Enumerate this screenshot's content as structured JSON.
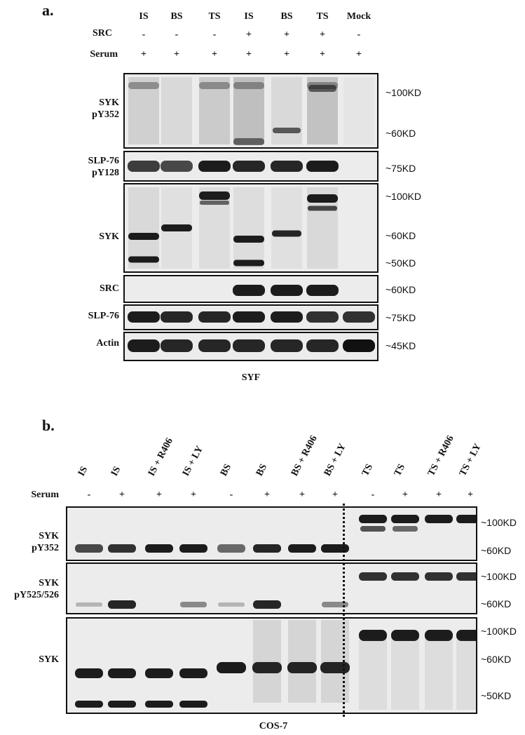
{
  "panel_a": {
    "label": "a.",
    "lanes": [
      "IS",
      "BS",
      "TS",
      "IS",
      "BS",
      "TS",
      "Mock"
    ],
    "row_src_label": "SRC",
    "src_signs": [
      "-",
      "-",
      "-",
      "+",
      "+",
      "+",
      "-"
    ],
    "row_serum_label": "Serum",
    "serum_signs": [
      "+",
      "+",
      "+",
      "+",
      "+",
      "+",
      "+"
    ],
    "blots": [
      {
        "label": "SYK\npY352",
        "markers": [
          "~100KD",
          "~60KD"
        ]
      },
      {
        "label": "SLP-76\npY128",
        "markers": [
          "~75KD"
        ]
      },
      {
        "label": "SYK",
        "markers": [
          "~100KD",
          "~60KD",
          "~50KD"
        ]
      },
      {
        "label": "SRC",
        "markers": [
          "~60KD"
        ]
      },
      {
        "label": "SLP-76",
        "markers": [
          "~75KD"
        ]
      },
      {
        "label": "Actin",
        "markers": [
          "~45KD"
        ]
      }
    ],
    "caption": "SYF"
  },
  "panel_b": {
    "label": "b.",
    "lanes": [
      "IS",
      "IS",
      "IS + R406",
      "IS + LY",
      "BS",
      "BS",
      "BS + R406",
      "BS + LY",
      "TS",
      "TS",
      "TS + R406",
      "TS + LY"
    ],
    "row_serum_label": "Serum",
    "serum_signs": [
      "-",
      "+",
      "+",
      "+",
      "-",
      "+",
      "+",
      "+",
      "-",
      "+",
      "+",
      "+"
    ],
    "blots": [
      {
        "label": "SYK\npY352",
        "markers": [
          "~100KD",
          "~60KD"
        ]
      },
      {
        "label": "SYK\npY525/526",
        "markers": [
          "~100KD",
          "~60KD"
        ]
      },
      {
        "label": "SYK",
        "markers": [
          "~100KD",
          "~60KD",
          "~50KD"
        ]
      }
    ],
    "caption": "COS-7"
  }
}
